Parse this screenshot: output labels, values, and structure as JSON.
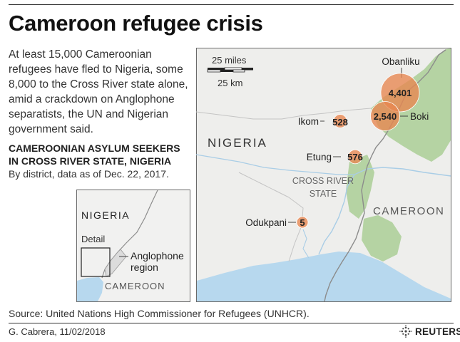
{
  "title": "Cameroon refugee crisis",
  "intro": "At least 15,000 Cameroonian refugees have fled to Nigeria, some 8,000 to the Cross River state alone, amid a crackdown on Anglophone separatists, the UN and Nigerian government said.",
  "chart_title": "CAMEROONIAN ASYLUM SEEKERS IN CROSS RIVER STATE, NIGERIA",
  "chart_note": "By district, data as of Dec. 22, 2017.",
  "main_map": {
    "scale_miles": "25 miles",
    "scale_km": "25 km",
    "country_nigeria": "NIGERIA",
    "country_cameroon": "CAMEROON",
    "state_line1": "CROSS RIVER",
    "state_line2": "STATE",
    "districts": [
      {
        "name": "Obanliku",
        "value": 4401,
        "value_label": "4,401"
      },
      {
        "name": "Boki",
        "value": 2540,
        "value_label": "2,540"
      },
      {
        "name": "Ikom",
        "value": 528,
        "value_label": "528"
      },
      {
        "name": "Etung",
        "value": 576,
        "value_label": "576"
      },
      {
        "name": "Odukpani",
        "value": 5,
        "value_label": "5"
      }
    ],
    "bubble_color": "#e8864f",
    "highland_color": "#b5d3a3",
    "sea_color": "#b7d8ee"
  },
  "inset_map": {
    "country_nigeria": "NIGERIA",
    "country_cameroon": "CAMEROON",
    "detail_label": "Detail",
    "region_line1": "Anglophone",
    "region_line2": "region"
  },
  "source": "Source: United Nations High Commissioner for Refugees (UNHCR).",
  "credit": "G. Cabrera, 11/02/2018",
  "brand": "REUTERS"
}
